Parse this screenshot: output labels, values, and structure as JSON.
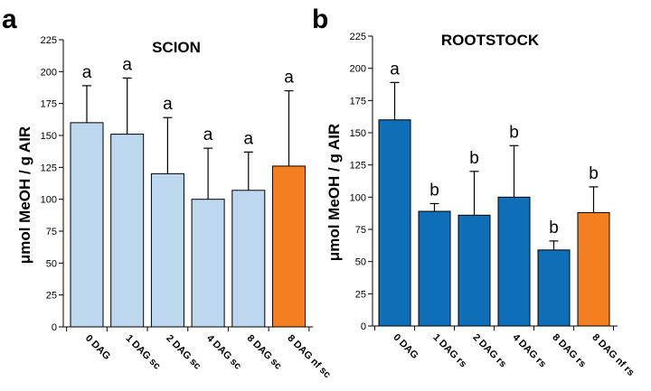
{
  "chart_data": [
    {
      "type": "bar",
      "panel": "a",
      "title": "SCION",
      "ylabel": "μmol MeOH / g AIR",
      "xlabel": "",
      "ylim": [
        0,
        225
      ],
      "yticks": [
        0,
        25,
        50,
        75,
        100,
        125,
        150,
        175,
        200,
        225
      ],
      "categories": [
        "0 DAG",
        "1 DAG sc",
        "2 DAG sc",
        "4 DAG sc",
        "8 DAG sc",
        "8 DAG nf sc"
      ],
      "values": [
        160,
        151,
        120,
        100,
        107,
        126
      ],
      "error_upper": [
        189,
        195,
        164,
        140,
        137,
        185
      ],
      "significance": [
        "a",
        "a",
        "a",
        "a",
        "a",
        "a"
      ],
      "bar_colors": [
        "#bdd7ee",
        "#bdd7ee",
        "#bdd7ee",
        "#bdd7ee",
        "#bdd7ee",
        "#f47f20"
      ],
      "grid": false
    },
    {
      "type": "bar",
      "panel": "b",
      "title": "ROOTSTOCK",
      "ylabel": "μmol MeOH / g AIR",
      "xlabel": "",
      "ylim": [
        0,
        225
      ],
      "yticks": [
        0,
        25,
        50,
        75,
        100,
        125,
        150,
        175,
        200,
        225
      ],
      "categories": [
        "0 DAG",
        "1 DAG rs",
        "2 DAG rs",
        "4 DAG rs",
        "8 DAG rs",
        "8 DAG nf rs"
      ],
      "values": [
        160,
        89,
        86,
        100,
        59,
        88
      ],
      "error_upper": [
        189,
        95,
        120,
        140,
        66,
        108
      ],
      "significance": [
        "a",
        "b",
        "b",
        "b",
        "b",
        "b"
      ],
      "bar_colors": [
        "#0e6eb8",
        "#0e6eb8",
        "#0e6eb8",
        "#0e6eb8",
        "#0e6eb8",
        "#f47f20"
      ],
      "grid": false
    }
  ]
}
